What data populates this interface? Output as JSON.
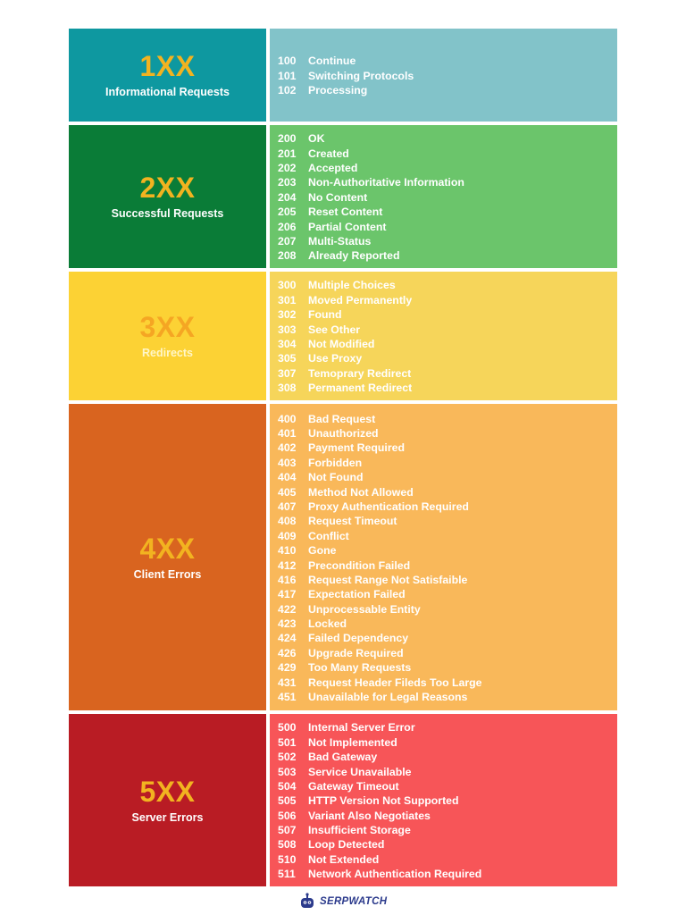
{
  "groups": [
    {
      "class": "1XX",
      "label": "Informational Requests",
      "codes": [
        {
          "num": "100",
          "text": "Continue"
        },
        {
          "num": "101",
          "text": "Switching Protocols"
        },
        {
          "num": "102",
          "text": "Processing"
        }
      ]
    },
    {
      "class": "2XX",
      "label": "Successful Requests",
      "codes": [
        {
          "num": "200",
          "text": "OK"
        },
        {
          "num": "201",
          "text": "Created"
        },
        {
          "num": "202",
          "text": "Accepted"
        },
        {
          "num": "203",
          "text": "Non-Authoritative Information"
        },
        {
          "num": "204",
          "text": "No Content"
        },
        {
          "num": "205",
          "text": "Reset Content"
        },
        {
          "num": "206",
          "text": "Partial Content"
        },
        {
          "num": "207",
          "text": "Multi-Status"
        },
        {
          "num": "208",
          "text": "Already Reported"
        }
      ]
    },
    {
      "class": "3XX",
      "label": "Redirects",
      "codes": [
        {
          "num": "300",
          "text": "Multiple Choices"
        },
        {
          "num": "301",
          "text": "Moved Permanently"
        },
        {
          "num": "302",
          "text": "Found"
        },
        {
          "num": "303",
          "text": "See Other"
        },
        {
          "num": "304",
          "text": "Not Modified"
        },
        {
          "num": "305",
          "text": "Use Proxy"
        },
        {
          "num": "307",
          "text": "Temoprary Redirect"
        },
        {
          "num": "308",
          "text": "Permanent Redirect"
        }
      ]
    },
    {
      "class": "4XX",
      "label": "Client Errors",
      "codes": [
        {
          "num": "400",
          "text": "Bad Request"
        },
        {
          "num": "401",
          "text": "Unauthorized"
        },
        {
          "num": "402",
          "text": "Payment Required"
        },
        {
          "num": "403",
          "text": "Forbidden"
        },
        {
          "num": "404",
          "text": "Not Found"
        },
        {
          "num": "405",
          "text": "Method Not Allowed"
        },
        {
          "num": "407",
          "text": "Proxy Authentication Required"
        },
        {
          "num": "408",
          "text": "Request Timeout"
        },
        {
          "num": "409",
          "text": "Conflict"
        },
        {
          "num": "410",
          "text": "Gone"
        },
        {
          "num": "412",
          "text": "Precondition Failed"
        },
        {
          "num": "416",
          "text": "Request Range Not Satisfaible"
        },
        {
          "num": "417",
          "text": "Expectation Failed"
        },
        {
          "num": "422",
          "text": "Unprocessable Entity"
        },
        {
          "num": "423",
          "text": "Locked"
        },
        {
          "num": "424",
          "text": "Failed Dependency"
        },
        {
          "num": "426",
          "text": "Upgrade Required"
        },
        {
          "num": "429",
          "text": "Too Many Requests"
        },
        {
          "num": "431",
          "text": "Request Header Fileds Too Large"
        },
        {
          "num": "451",
          "text": "Unavailable for Legal Reasons"
        }
      ]
    },
    {
      "class": "5XX",
      "label": "Server Errors",
      "codes": [
        {
          "num": "500",
          "text": "Internal Server Error"
        },
        {
          "num": "501",
          "text": "Not Implemented"
        },
        {
          "num": "502",
          "text": "Bad Gateway"
        },
        {
          "num": "503",
          "text": "Service Unavailable"
        },
        {
          "num": "504",
          "text": "Gateway Timeout"
        },
        {
          "num": "505",
          "text": "HTTP Version Not Supported"
        },
        {
          "num": "506",
          "text": "Variant Also Negotiates"
        },
        {
          "num": "507",
          "text": "Insufficient Storage"
        },
        {
          "num": "508",
          "text": "Loop Detected"
        },
        {
          "num": "510",
          "text": "Not Extended"
        },
        {
          "num": "511",
          "text": "Network Authentication Required"
        }
      ]
    }
  ],
  "footer": {
    "brand": "SERPWATCH",
    "logo_icon": "robot-icon"
  },
  "colors": {
    "accent_class_text": "#f2b320",
    "brand": "#2b3a8c"
  }
}
